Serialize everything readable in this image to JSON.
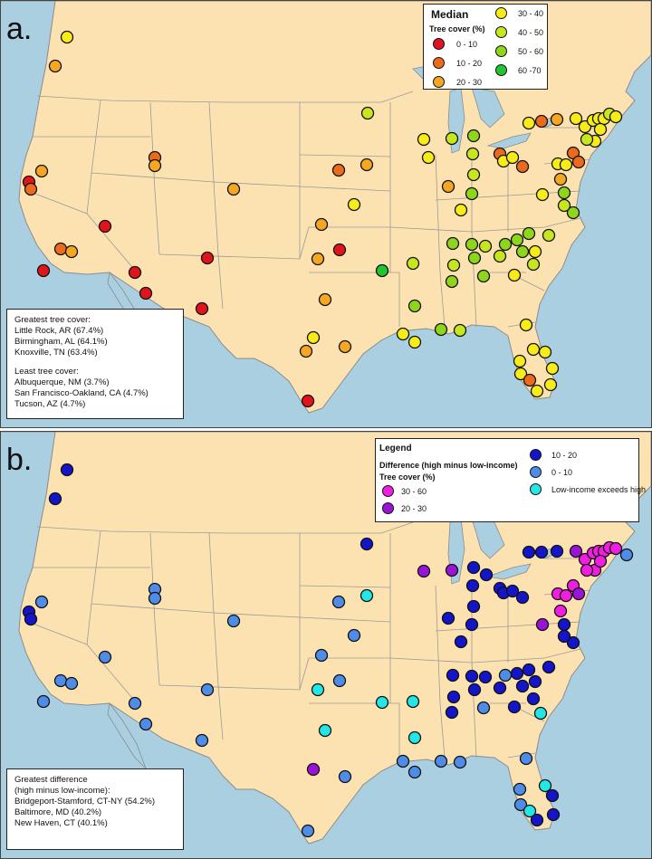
{
  "panel_a": {
    "letter": "a.",
    "legend": {
      "title": "Median",
      "subtitle": "Tree cover (%)",
      "items": [
        {
          "label": "0 - 10",
          "color": "#e0141b"
        },
        {
          "label": "10 - 20",
          "color": "#ec6a1c"
        },
        {
          "label": "20 - 30",
          "color": "#f5a623"
        },
        {
          "label": "30 - 40",
          "color": "#f7ec19"
        },
        {
          "label": "40 - 50",
          "color": "#c8e620"
        },
        {
          "label": "50 - 60",
          "color": "#8ed61c"
        },
        {
          "label": "60 -70",
          "color": "#22c42f"
        }
      ]
    },
    "info": {
      "greatest_title": "Greatest tree cover:",
      "greatest": [
        "Little Rock, AR (67.4%)",
        "Birmingham, AL (64.1%)",
        "Knoxville, TN (63.4%)"
      ],
      "least_title": "Least tree cover:",
      "least": [
        "Albuquerque, NM (3.7%)",
        "San Francisco-Oakland, CA (4.7%)",
        "Tucson, AZ (4.7%)"
      ]
    }
  },
  "panel_b": {
    "letter": "b.",
    "legend": {
      "title": "Legend",
      "subtitle": "Difference (high minus low-income)",
      "subtitle2": "Tree cover (%)",
      "items": [
        {
          "label": "30 - 60",
          "color": "#f01ee0"
        },
        {
          "label": "20 - 30",
          "color": "#9a14d8"
        },
        {
          "label": "10 - 20",
          "color": "#1414c8"
        },
        {
          "label": "0 - 10",
          "color": "#4f8ce8"
        },
        {
          "label": "Low-income exceeds high",
          "color": "#25e6e6"
        }
      ]
    },
    "info": {
      "title_line1": "Greatest difference",
      "title_line2": "(high minus low-income):",
      "items": [
        "Bridgeport-Stamford, CT-NY (54.2%)",
        "Baltimore, MD (40.2%)",
        "New Haven, CT (40.1%)"
      ]
    }
  },
  "colors": {
    "water": "#a9cfe0",
    "land": "#fce2b0",
    "border": "#9a9a9a"
  },
  "cities_a": [
    [
      73,
      40,
      3
    ],
    [
      60,
      72,
      2
    ],
    [
      31,
      200,
      0
    ],
    [
      33,
      208,
      1
    ],
    [
      45,
      188,
      2
    ],
    [
      170,
      173,
      1
    ],
    [
      170,
      182,
      2
    ],
    [
      257,
      208,
      2
    ],
    [
      115,
      249,
      0
    ],
    [
      66,
      274,
      1
    ],
    [
      78,
      277,
      2
    ],
    [
      47,
      298,
      0
    ],
    [
      148,
      300,
      0
    ],
    [
      228,
      284,
      0
    ],
    [
      160,
      323,
      0
    ],
    [
      222,
      340,
      0
    ],
    [
      373,
      187,
      1
    ],
    [
      404,
      181,
      2
    ],
    [
      390,
      225,
      3
    ],
    [
      354,
      247,
      2
    ],
    [
      374,
      275,
      0
    ],
    [
      350,
      285,
      2
    ],
    [
      358,
      330,
      2
    ],
    [
      345,
      372,
      3
    ],
    [
      337,
      387,
      2
    ],
    [
      380,
      382,
      2
    ],
    [
      339,
      442,
      0
    ],
    [
      405,
      124,
      4
    ],
    [
      467,
      153,
      3
    ],
    [
      472,
      173,
      3
    ],
    [
      498,
      152,
      4
    ],
    [
      522,
      149,
      5
    ],
    [
      521,
      169,
      4
    ],
    [
      522,
      192,
      4
    ],
    [
      494,
      205,
      2
    ],
    [
      520,
      213,
      5
    ],
    [
      508,
      231,
      3
    ],
    [
      551,
      169,
      1
    ],
    [
      555,
      177,
      3
    ],
    [
      565,
      173,
      3
    ],
    [
      576,
      183,
      1
    ],
    [
      583,
      135,
      3
    ],
    [
      597,
      133,
      1
    ],
    [
      614,
      131,
      2
    ],
    [
      635,
      130,
      3
    ],
    [
      632,
      168,
      1
    ],
    [
      615,
      180,
      3
    ],
    [
      624,
      181,
      3
    ],
    [
      638,
      178,
      1
    ],
    [
      618,
      197,
      2
    ],
    [
      622,
      212,
      5
    ],
    [
      632,
      234,
      5
    ],
    [
      622,
      226,
      4
    ],
    [
      598,
      214,
      3
    ],
    [
      645,
      139,
      3
    ],
    [
      654,
      132,
      3
    ],
    [
      660,
      130,
      3
    ],
    [
      666,
      130,
      3
    ],
    [
      672,
      125,
      4
    ],
    [
      679,
      128,
      3
    ],
    [
      656,
      155,
      3
    ],
    [
      662,
      142,
      3
    ],
    [
      647,
      153,
      4
    ],
    [
      499,
      268,
      5
    ],
    [
      523,
      284,
      5
    ],
    [
      500,
      292,
      4
    ],
    [
      520,
      269,
      5
    ],
    [
      535,
      271,
      4
    ],
    [
      557,
      269,
      5
    ],
    [
      570,
      264,
      5
    ],
    [
      583,
      257,
      5
    ],
    [
      605,
      259,
      4
    ],
    [
      590,
      277,
      3
    ],
    [
      576,
      277,
      5
    ],
    [
      551,
      282,
      4
    ],
    [
      567,
      303,
      3
    ],
    [
      588,
      291,
      4
    ],
    [
      533,
      304,
      5
    ],
    [
      498,
      310,
      5
    ],
    [
      455,
      290,
      4
    ],
    [
      421,
      298,
      6
    ],
    [
      457,
      337,
      5
    ],
    [
      444,
      368,
      3
    ],
    [
      457,
      377,
      3
    ],
    [
      486,
      363,
      5
    ],
    [
      507,
      364,
      4
    ],
    [
      580,
      358,
      3
    ],
    [
      588,
      385,
      3
    ],
    [
      601,
      388,
      3
    ],
    [
      573,
      398,
      3
    ],
    [
      574,
      412,
      3
    ],
    [
      584,
      419,
      1
    ],
    [
      592,
      431,
      3
    ],
    [
      609,
      406,
      3
    ],
    [
      607,
      424,
      3
    ]
  ],
  "cities_b": [
    [
      73,
      519,
      2
    ],
    [
      60,
      551,
      2
    ],
    [
      31,
      676,
      2
    ],
    [
      33,
      684,
      2
    ],
    [
      45,
      665,
      3
    ],
    [
      170,
      651,
      3
    ],
    [
      170,
      661,
      3
    ],
    [
      257,
      686,
      3
    ],
    [
      115,
      726,
      3
    ],
    [
      66,
      752,
      3
    ],
    [
      78,
      755,
      3
    ],
    [
      47,
      775,
      3
    ],
    [
      148,
      777,
      3
    ],
    [
      228,
      762,
      3
    ],
    [
      160,
      800,
      3
    ],
    [
      222,
      818,
      3
    ],
    [
      404,
      601,
      2
    ],
    [
      373,
      665,
      3
    ],
    [
      404,
      658,
      4
    ],
    [
      390,
      702,
      3
    ],
    [
      354,
      724,
      3
    ],
    [
      374,
      752,
      3
    ],
    [
      350,
      762,
      4
    ],
    [
      358,
      807,
      4
    ],
    [
      345,
      850,
      1
    ],
    [
      380,
      858,
      3
    ],
    [
      339,
      918,
      3
    ],
    [
      467,
      631,
      1
    ],
    [
      498,
      630,
      1
    ],
    [
      522,
      627,
      2
    ],
    [
      521,
      647,
      2
    ],
    [
      522,
      670,
      2
    ],
    [
      494,
      683,
      2
    ],
    [
      520,
      690,
      2
    ],
    [
      508,
      709,
      2
    ],
    [
      536,
      635,
      2
    ],
    [
      551,
      650,
      2
    ],
    [
      555,
      655,
      2
    ],
    [
      565,
      653,
      2
    ],
    [
      576,
      660,
      2
    ],
    [
      583,
      610,
      2
    ],
    [
      597,
      610,
      2
    ],
    [
      614,
      609,
      2
    ],
    [
      635,
      609,
      1
    ],
    [
      632,
      647,
      0
    ],
    [
      615,
      656,
      0
    ],
    [
      624,
      658,
      0
    ],
    [
      638,
      656,
      1
    ],
    [
      618,
      675,
      0
    ],
    [
      622,
      690,
      2
    ],
    [
      632,
      710,
      2
    ],
    [
      622,
      703,
      2
    ],
    [
      598,
      690,
      1
    ],
    [
      645,
      618,
      0
    ],
    [
      654,
      611,
      0
    ],
    [
      660,
      609,
      0
    ],
    [
      666,
      609,
      0
    ],
    [
      672,
      605,
      0
    ],
    [
      679,
      606,
      0
    ],
    [
      691,
      613,
      3
    ],
    [
      656,
      630,
      0
    ],
    [
      662,
      620,
      0
    ],
    [
      647,
      630,
      0
    ],
    [
      499,
      746,
      2
    ],
    [
      523,
      762,
      2
    ],
    [
      500,
      770,
      2
    ],
    [
      520,
      747,
      2
    ],
    [
      535,
      748,
      2
    ],
    [
      557,
      746,
      3
    ],
    [
      570,
      744,
      2
    ],
    [
      583,
      740,
      2
    ],
    [
      605,
      737,
      2
    ],
    [
      590,
      753,
      2
    ],
    [
      576,
      758,
      2
    ],
    [
      551,
      760,
      2
    ],
    [
      567,
      781,
      2
    ],
    [
      588,
      772,
      2
    ],
    [
      533,
      782,
      3
    ],
    [
      498,
      787,
      2
    ],
    [
      455,
      775,
      4
    ],
    [
      421,
      776,
      4
    ],
    [
      457,
      815,
      4
    ],
    [
      444,
      841,
      3
    ],
    [
      457,
      853,
      3
    ],
    [
      486,
      841,
      3
    ],
    [
      507,
      842,
      3
    ],
    [
      580,
      838,
      3
    ],
    [
      596,
      788,
      4
    ],
    [
      601,
      868,
      4
    ],
    [
      573,
      872,
      3
    ],
    [
      574,
      889,
      3
    ],
    [
      584,
      896,
      4
    ],
    [
      592,
      906,
      2
    ],
    [
      609,
      879,
      2
    ],
    [
      610,
      900,
      2
    ]
  ]
}
